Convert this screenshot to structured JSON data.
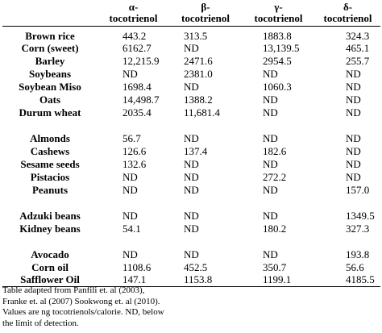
{
  "headers": [
    "",
    "α-\ntocotrienol",
    "β-\ntocotrienol",
    "γ-\ntocotrienol",
    "δ-\ntocotrienol"
  ],
  "groups": [
    {
      "rows": [
        {
          "name": "Brown rice",
          "values": [
            "443.2",
            "313.5",
            "1883.8",
            "324.3"
          ]
        },
        {
          "name": "Corn (sweet)",
          "values": [
            "6162.7",
            "ND",
            "13,139.5",
            "465.1"
          ]
        },
        {
          "name": "Barley",
          "values": [
            "12,215.9",
            "2471.6",
            "2954.5",
            "255.7"
          ]
        },
        {
          "name": "Soybeans",
          "values": [
            "ND",
            "2381.0",
            "ND",
            "ND"
          ]
        },
        {
          "name": "Soybean Miso",
          "values": [
            "1698.4",
            "ND",
            "1060.3",
            "ND"
          ]
        },
        {
          "name": "Oats",
          "values": [
            "14,498.7",
            "1388.2",
            "ND",
            "ND"
          ]
        },
        {
          "name": "Durum wheat",
          "values": [
            "2035.4",
            "11,681.4",
            "ND",
            "ND"
          ]
        }
      ]
    },
    {
      "rows": [
        {
          "name": "Almonds",
          "values": [
            "56.7",
            "ND",
            "ND",
            "ND"
          ]
        },
        {
          "name": "Cashews",
          "values": [
            "126.6",
            "137.4",
            "182.6",
            "ND"
          ]
        },
        {
          "name": "Sesame seeds",
          "values": [
            "132.6",
            "ND",
            "ND",
            "ND"
          ]
        },
        {
          "name": "Pistacios",
          "values": [
            "ND",
            "ND",
            "272.2",
            "ND"
          ]
        },
        {
          "name": "Peanuts",
          "values": [
            "ND",
            "ND",
            "ND",
            "157.0"
          ]
        }
      ]
    },
    {
      "rows": [
        {
          "name": "Adzuki beans",
          "values": [
            "ND",
            "ND",
            "ND",
            "1349.5"
          ]
        },
        {
          "name": "Kidney beans",
          "values": [
            "54.1",
            "ND",
            "180.2",
            "327.3"
          ]
        }
      ]
    },
    {
      "rows": [
        {
          "name": "Avocado",
          "values": [
            "ND",
            "ND",
            "ND",
            "193.8"
          ]
        },
        {
          "name": "Corn oil",
          "values": [
            "1108.6",
            "452.5",
            "350.7",
            "56.6"
          ]
        },
        {
          "name": "Safflower Oil",
          "values": [
            "147.1",
            "1153.8",
            "1199.1",
            "4185.5"
          ]
        }
      ]
    }
  ],
  "footnote": [
    "Table adapted from Panfili et. al (2003),",
    "Franke et. al (2007) Sookwong et. al (2010).",
    "Values are ng tocotrienols/calorie. ND, below",
    "the limit of detection."
  ]
}
